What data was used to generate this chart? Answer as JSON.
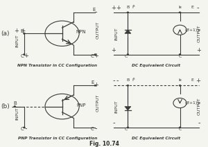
{
  "title": "Fig. 10.74",
  "bg_color": "#f5f5f0",
  "text_color": "#2a2a2a",
  "label_a": "(a)",
  "label_b": "(b)",
  "caption_npn": "NPN Transistor in CC Configuration",
  "caption_pnp": "PNP Transistor in CC Configuration",
  "caption_dc1": "DC Equivalent Circuit",
  "caption_dc2": "DC Equivalent Circuit",
  "fig_label": "Fig. 10.74"
}
